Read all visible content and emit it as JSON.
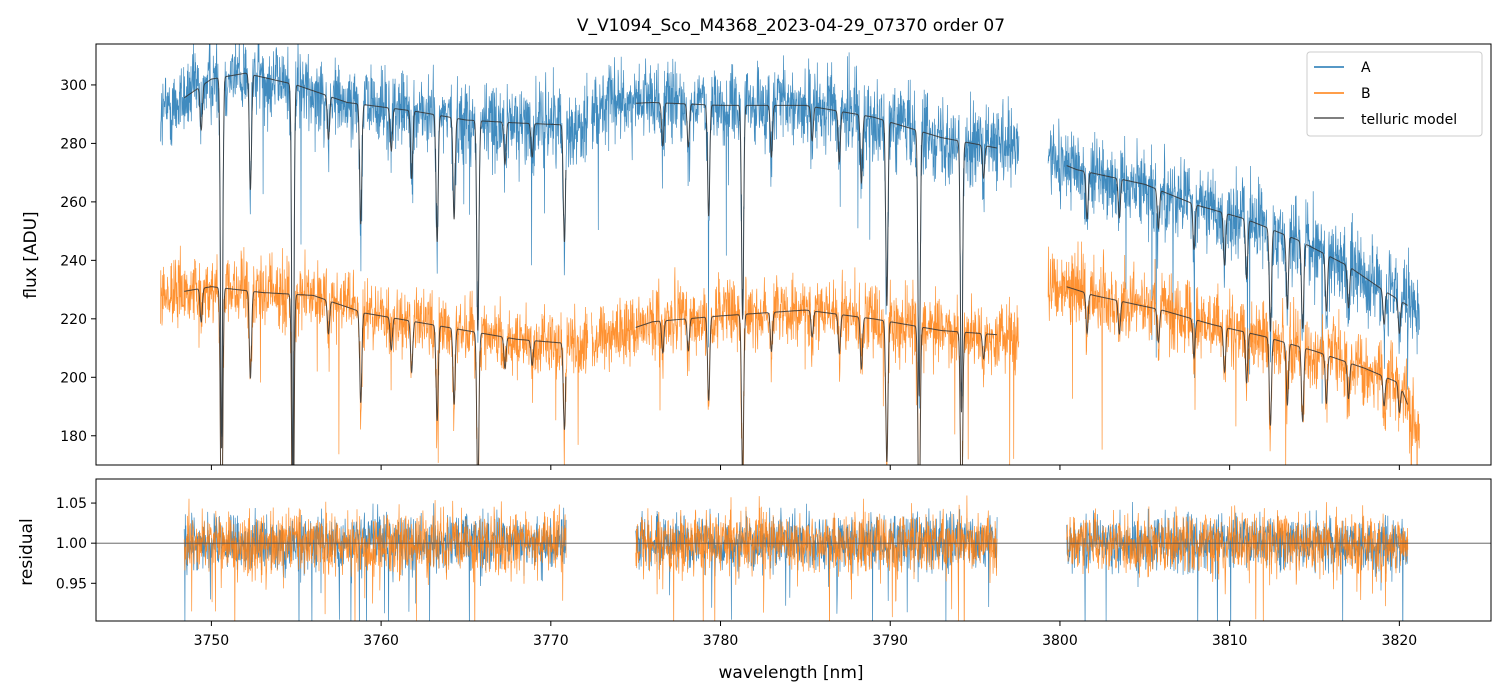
{
  "chart_data": [
    {
      "type": "line",
      "title": "V_V1094_Sco_M4368_2023-04-29_07370  order 07",
      "xlabel": "",
      "ylabel": "flux [ADU]",
      "xlim": [
        3743.2,
        3825.4
      ],
      "ylim": [
        170,
        314
      ],
      "yticks": [
        180,
        200,
        220,
        240,
        260,
        280,
        300
      ],
      "xticks": [
        3750,
        3760,
        3770,
        3780,
        3790,
        3800,
        3810,
        3820
      ],
      "legend_position": "top-right",
      "legend": [
        "A",
        "B",
        "telluric model"
      ],
      "colors": {
        "A": "#1f77b4",
        "B": "#ff7f0e",
        "model": "#333333"
      },
      "segments": [
        [
          3747.0,
          3772.2
        ],
        [
          3772.4,
          3797.6
        ],
        [
          3799.3,
          3821.2
        ]
      ],
      "model_segments": [
        [
          3748.4,
          3770.9
        ],
        [
          3775.0,
          3796.3
        ],
        [
          3800.4,
          3820.5
        ]
      ],
      "series": [
        {
          "name": "A",
          "continuum_knots": [
            [
              3747.0,
              290
            ],
            [
              3750,
              302
            ],
            [
              3752,
              304
            ],
            [
              3755,
              300
            ],
            [
              3758,
              294
            ],
            [
              3762,
              291
            ],
            [
              3765,
              288
            ],
            [
              3768,
              287
            ],
            [
              3772.2,
              286
            ],
            [
              3772.4,
              293
            ],
            [
              3776,
              294
            ],
            [
              3780,
              293
            ],
            [
              3785,
              293
            ],
            [
              3789,
              289
            ],
            [
              3793,
              282
            ],
            [
              3797.6,
              277
            ],
            [
              3799.3,
              275
            ],
            [
              3801,
              271
            ],
            [
              3805,
              266
            ],
            [
              3808,
              259
            ],
            [
              3811,
              254
            ],
            [
              3814,
              247
            ],
            [
              3817,
              238
            ],
            [
              3819,
              230
            ],
            [
              3821.2,
              222
            ]
          ],
          "noise": 7
        },
        {
          "name": "B",
          "continuum_knots": [
            [
              3747.0,
              228
            ],
            [
              3750,
              231
            ],
            [
              3753,
              229
            ],
            [
              3756,
              228
            ],
            [
              3759,
              222
            ],
            [
              3762,
              219
            ],
            [
              3765,
              216
            ],
            [
              3768,
              213
            ],
            [
              3772.2,
              211
            ],
            [
              3772.4,
              212
            ],
            [
              3776,
              219
            ],
            [
              3780,
              221
            ],
            [
              3785,
              223
            ],
            [
              3789,
              220
            ],
            [
              3793,
              216
            ],
            [
              3797.6,
              214
            ],
            [
              3799.3,
              233
            ],
            [
              3802,
              228
            ],
            [
              3806,
              223
            ],
            [
              3809,
              218
            ],
            [
              3812,
              214
            ],
            [
              3815,
              209
            ],
            [
              3818,
              203
            ],
            [
              3820,
              198
            ],
            [
              3821.2,
              180
            ]
          ],
          "noise": 6
        }
      ],
      "telluric_lines": [
        {
          "wl": 3749.4,
          "depth": 0.05
        },
        {
          "wl": 3750.6,
          "depth": 0.42
        },
        {
          "wl": 3752.3,
          "depth": 0.13
        },
        {
          "wl": 3754.8,
          "depth": 0.45
        },
        {
          "wl": 3756.9,
          "depth": 0.05
        },
        {
          "wl": 3758.8,
          "depth": 0.14
        },
        {
          "wl": 3760.6,
          "depth": 0.05
        },
        {
          "wl": 3761.8,
          "depth": 0.08
        },
        {
          "wl": 3763.3,
          "depth": 0.15
        },
        {
          "wl": 3764.3,
          "depth": 0.12
        },
        {
          "wl": 3765.7,
          "depth": 0.25
        },
        {
          "wl": 3767.3,
          "depth": 0.05
        },
        {
          "wl": 3768.9,
          "depth": 0.04
        },
        {
          "wl": 3770.8,
          "depth": 0.14
        },
        {
          "wl": 3776.6,
          "depth": 0.05
        },
        {
          "wl": 3778.1,
          "depth": 0.05
        },
        {
          "wl": 3779.3,
          "depth": 0.13
        },
        {
          "wl": 3781.3,
          "depth": 0.25
        },
        {
          "wl": 3783.0,
          "depth": 0.06
        },
        {
          "wl": 3785.4,
          "depth": 0.04
        },
        {
          "wl": 3787.0,
          "depth": 0.06
        },
        {
          "wl": 3788.3,
          "depth": 0.08
        },
        {
          "wl": 3789.8,
          "depth": 0.22
        },
        {
          "wl": 3791.7,
          "depth": 0.32
        },
        {
          "wl": 3794.2,
          "depth": 0.33
        },
        {
          "wl": 3795.5,
          "depth": 0.04
        },
        {
          "wl": 3801.6,
          "depth": 0.06
        },
        {
          "wl": 3803.5,
          "depth": 0.05
        },
        {
          "wl": 3805.8,
          "depth": 0.05
        },
        {
          "wl": 3807.9,
          "depth": 0.06
        },
        {
          "wl": 3809.7,
          "depth": 0.07
        },
        {
          "wl": 3811.0,
          "depth": 0.08
        },
        {
          "wl": 3812.4,
          "depth": 0.14
        },
        {
          "wl": 3813.4,
          "depth": 0.1
        },
        {
          "wl": 3814.3,
          "depth": 0.12
        },
        {
          "wl": 3815.7,
          "depth": 0.08
        },
        {
          "wl": 3817.0,
          "depth": 0.06
        },
        {
          "wl": 3819.1,
          "depth": 0.05
        },
        {
          "wl": 3820.0,
          "depth": 0.05
        }
      ]
    },
    {
      "type": "line",
      "title": "",
      "xlabel": "wavelength [nm]",
      "ylabel": "residual",
      "xlim": [
        3743.2,
        3825.4
      ],
      "ylim": [
        0.903,
        1.08
      ],
      "yticks": [
        0.95,
        1.0,
        1.05
      ],
      "ytick_labels": [
        "0.95",
        "1.00",
        "1.05"
      ],
      "xticks": [
        3750,
        3760,
        3770,
        3780,
        3790,
        3800,
        3810,
        3820
      ],
      "xtick_labels": [
        "3750",
        "3760",
        "3770",
        "3780",
        "3790",
        "3800",
        "3810",
        "3820"
      ],
      "reference_line": 1.0,
      "segments": [
        [
          3748.4,
          3770.9
        ],
        [
          3775.0,
          3796.3
        ],
        [
          3800.4,
          3820.5
        ]
      ],
      "series": [
        {
          "name": "A residual",
          "center": 1.0,
          "noise": 0.032
        },
        {
          "name": "B residual",
          "center": 1.0,
          "noise": 0.036
        }
      ]
    }
  ]
}
